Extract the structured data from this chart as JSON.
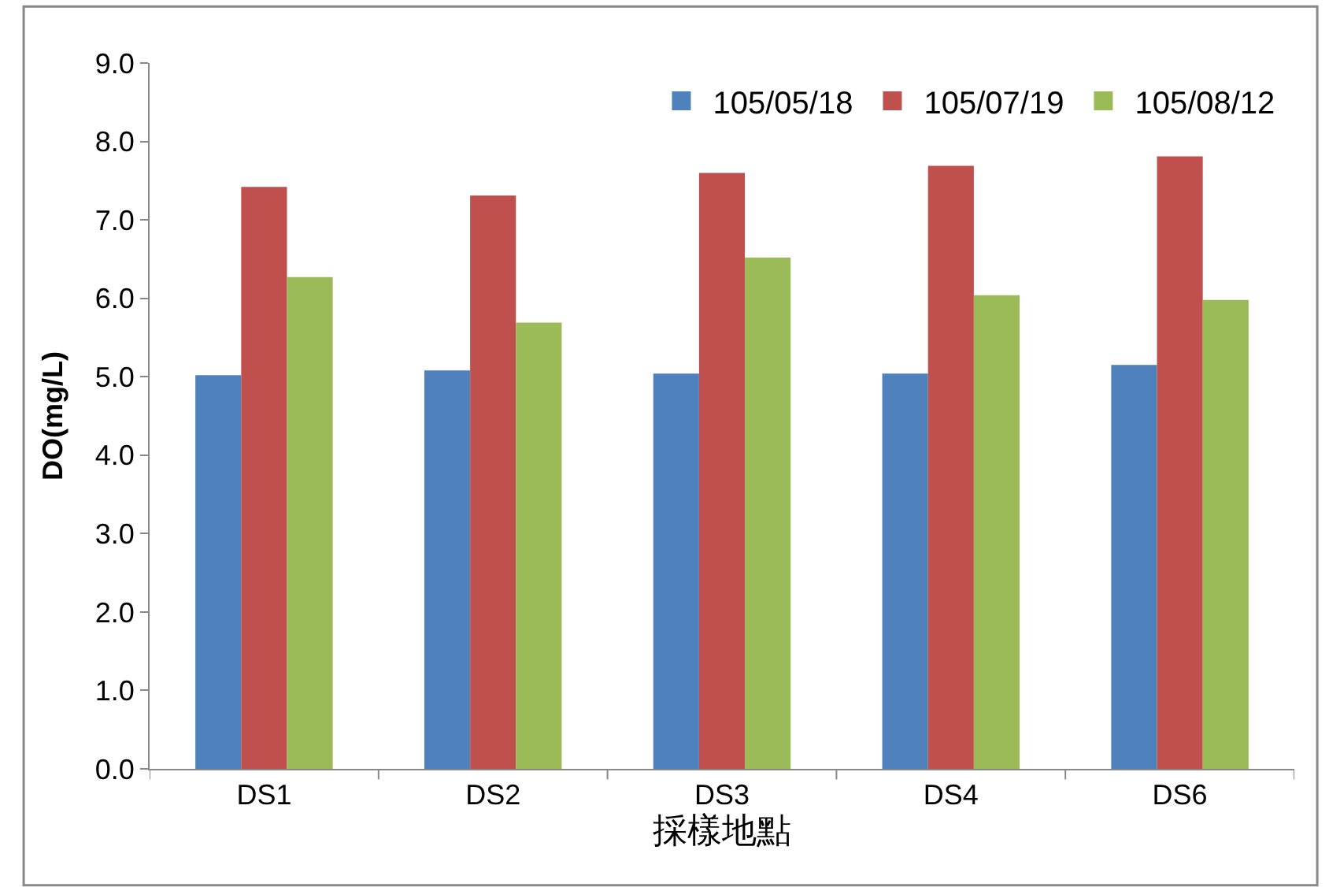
{
  "chart_data": {
    "type": "bar",
    "xlabel": "採樣地點",
    "ylabel": "DO(mg/L)",
    "categories": [
      "DS1",
      "DS2",
      "DS3",
      "DS4",
      "DS6"
    ],
    "series": [
      {
        "name": "105/05/18",
        "color": "#4f81bd",
        "values": [
          5.02,
          5.08,
          5.04,
          5.04,
          5.15
        ]
      },
      {
        "name": "105/07/19",
        "color": "#c0504d",
        "values": [
          7.42,
          7.31,
          7.6,
          7.69,
          7.81
        ]
      },
      {
        "name": "105/08/12",
        "color": "#9bbb59",
        "values": [
          6.27,
          5.69,
          6.52,
          6.04,
          5.98
        ]
      }
    ],
    "ylim": [
      0,
      9
    ],
    "yticks": [
      {
        "value": 0,
        "label": "0.0"
      },
      {
        "value": 1,
        "label": "1.0"
      },
      {
        "value": 2,
        "label": "2.0"
      },
      {
        "value": 3,
        "label": "3.0"
      },
      {
        "value": 4,
        "label": "4.0"
      },
      {
        "value": 5,
        "label": "5.0"
      },
      {
        "value": 6,
        "label": "6.0"
      },
      {
        "value": 7,
        "label": "7.0"
      },
      {
        "value": 8,
        "label": "8.0"
      },
      {
        "value": 9,
        "label": "9.0"
      }
    ],
    "legend": "top right"
  }
}
